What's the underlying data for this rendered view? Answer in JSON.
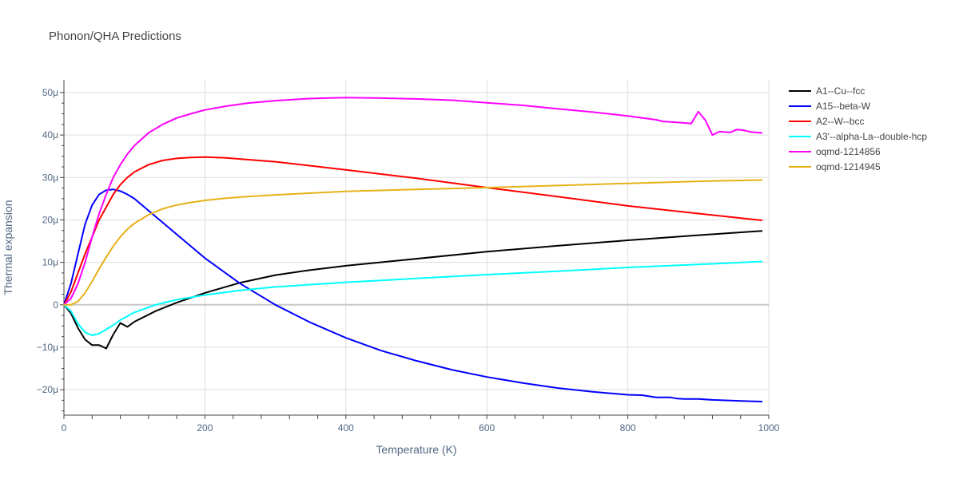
{
  "chart_data": {
    "type": "line",
    "title": "Phonon/QHA Predictions",
    "xlabel": "Temperature (K)",
    "ylabel": "Thermal expansion",
    "xlim": [
      0,
      1000
    ],
    "ylim": [
      -26,
      53
    ],
    "x_ticks": [
      0,
      200,
      400,
      600,
      800,
      1000
    ],
    "x_tick_labels": [
      "0",
      "200",
      "400",
      "600",
      "800",
      "1000"
    ],
    "y_ticks": [
      -20,
      -10,
      0,
      10,
      20,
      30,
      40,
      50
    ],
    "y_tick_labels": [
      "−20μ",
      "−10μ",
      "0",
      "10μ",
      "20μ",
      "30μ",
      "40μ",
      "50μ"
    ],
    "y_unit_note": "values in units of 1e-6 (μ)",
    "grid": true,
    "legend_position": "right",
    "series": [
      {
        "name": "A1--Cu--fcc",
        "color": "#000000",
        "x": [
          0,
          10,
          20,
          30,
          40,
          50,
          60,
          70,
          80,
          90,
          100,
          130,
          160,
          200,
          250,
          300,
          350,
          400,
          480,
          600,
          700,
          800,
          900,
          990
        ],
        "y": [
          0,
          -2,
          -5.5,
          -8.2,
          -9.5,
          -9.5,
          -10.3,
          -7,
          -4.3,
          -5.2,
          -4,
          -1.5,
          0.5,
          2.8,
          5.2,
          7,
          8.2,
          9.2,
          10.5,
          12.5,
          13.9,
          15.2,
          16.4,
          17.4
        ]
      },
      {
        "name": "A15--beta-W",
        "color": "#0000ff",
        "x": [
          0,
          10,
          20,
          30,
          40,
          50,
          60,
          70,
          80,
          90,
          100,
          150,
          200,
          250,
          300,
          350,
          400,
          450,
          500,
          550,
          600,
          650,
          700,
          750,
          800,
          820,
          840,
          860,
          870,
          880,
          900,
          920,
          950,
          970,
          990
        ],
        "y": [
          0,
          5,
          12,
          19,
          23.5,
          26,
          27,
          27.2,
          26.8,
          26,
          25,
          18,
          11,
          5,
          0,
          -4.2,
          -7.8,
          -10.8,
          -13.2,
          -15.3,
          -17,
          -18.4,
          -19.6,
          -20.5,
          -21.2,
          -21.3,
          -21.8,
          -21.8,
          -22.1,
          -22.2,
          -22.2,
          -22.4,
          -22.6,
          -22.7,
          -22.8
        ]
      },
      {
        "name": "A2--W--bcc",
        "color": "#ff0000",
        "x": [
          0,
          10,
          20,
          30,
          40,
          50,
          60,
          70,
          80,
          90,
          100,
          120,
          140,
          160,
          180,
          200,
          230,
          260,
          300,
          400,
          500,
          600,
          700,
          800,
          900,
          990
        ],
        "y": [
          0,
          3,
          7.5,
          12,
          16,
          20,
          23,
          26,
          28.3,
          30,
          31.3,
          33,
          34,
          34.5,
          34.7,
          34.8,
          34.6,
          34.2,
          33.7,
          31.8,
          29.8,
          27.6,
          25.5,
          23.3,
          21.5,
          19.9
        ]
      },
      {
        "name": "A3'--alpha-La--double-hcp",
        "color": "#00ffff",
        "x": [
          0,
          10,
          20,
          30,
          40,
          50,
          60,
          70,
          80,
          100,
          130,
          160,
          200,
          250,
          300,
          400,
          500,
          600,
          700,
          800,
          900,
          990
        ],
        "y": [
          0,
          -1.5,
          -4.5,
          -6.5,
          -7.2,
          -6.8,
          -5.8,
          -4.8,
          -3.6,
          -1.8,
          0,
          1.2,
          2.3,
          3.4,
          4.2,
          5.3,
          6.2,
          7.1,
          7.9,
          8.8,
          9.5,
          10.2
        ]
      },
      {
        "name": "oqmd-1214856",
        "color": "#ff00ff",
        "x": [
          0,
          10,
          20,
          30,
          40,
          50,
          60,
          70,
          80,
          90,
          100,
          120,
          140,
          160,
          180,
          200,
          230,
          260,
          300,
          350,
          400,
          450,
          500,
          550,
          600,
          650,
          700,
          750,
          800,
          840,
          850,
          870,
          890,
          900,
          910,
          920,
          930,
          945,
          955,
          965,
          975,
          990
        ],
        "y": [
          0,
          1.5,
          5,
          10,
          16,
          21.5,
          26,
          30,
          33,
          35.5,
          37.5,
          40.5,
          42.5,
          44,
          45,
          45.9,
          46.8,
          47.5,
          48.1,
          48.6,
          48.8,
          48.7,
          48.5,
          48.2,
          47.6,
          47,
          46.2,
          45.4,
          44.5,
          43.6,
          43.2,
          43,
          42.7,
          45.5,
          43.5,
          40,
          40.8,
          40.6,
          41.3,
          41.1,
          40.7,
          40.5
        ]
      },
      {
        "name": "oqmd-1214945",
        "color": "#e6b117",
        "x": [
          0,
          10,
          20,
          30,
          40,
          50,
          60,
          70,
          80,
          90,
          100,
          120,
          140,
          160,
          180,
          200,
          230,
          260,
          300,
          350,
          400,
          500,
          600,
          700,
          800,
          900,
          990
        ],
        "y": [
          0,
          0,
          0.8,
          2.8,
          5.5,
          8.5,
          11.2,
          13.8,
          16,
          17.8,
          19.2,
          21.2,
          22.6,
          23.5,
          24.1,
          24.6,
          25.1,
          25.5,
          25.9,
          26.3,
          26.7,
          27.2,
          27.6,
          28.1,
          28.6,
          29.1,
          29.4
        ]
      }
    ]
  }
}
